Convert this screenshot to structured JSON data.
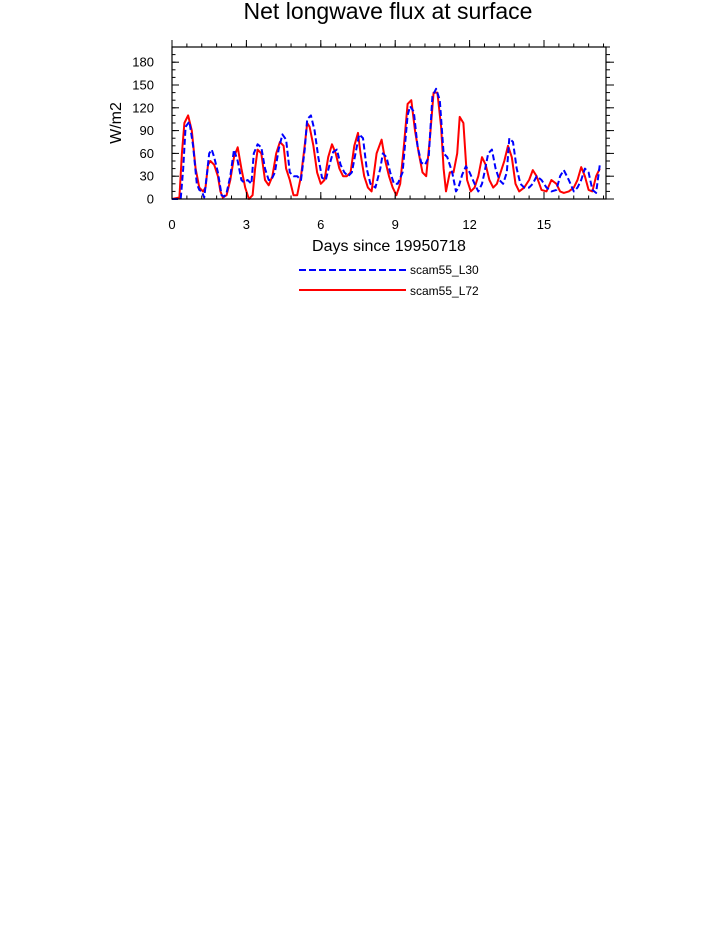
{
  "chart_data": {
    "type": "line",
    "title": "Net longwave flux at surface",
    "xlabel": "Days since 19950718",
    "ylabel": "W/m2",
    "xlim": [
      0,
      17.5
    ],
    "ylim": [
      0,
      200
    ],
    "xticks": [
      0,
      3,
      6,
      9,
      12,
      15
    ],
    "yticks": [
      0,
      30,
      60,
      90,
      120,
      150,
      180
    ],
    "grid": false,
    "legend_position": "bottom-center",
    "series": [
      {
        "name": "scam55_L30",
        "color": "#0000ff",
        "style": "dashed",
        "x": [
          0.0,
          0.35,
          0.45,
          0.55,
          0.7,
          0.85,
          1.0,
          1.1,
          1.2,
          1.3,
          1.4,
          1.5,
          1.6,
          1.7,
          1.85,
          2.0,
          2.1,
          2.2,
          2.35,
          2.5,
          2.65,
          2.8,
          2.9,
          3.05,
          3.2,
          3.3,
          3.45,
          3.6,
          3.75,
          3.9,
          4.0,
          4.15,
          4.3,
          4.45,
          4.6,
          4.75,
          4.9,
          5.05,
          5.2,
          5.35,
          5.45,
          5.6,
          5.75,
          5.9,
          6.05,
          6.2,
          6.35,
          6.5,
          6.65,
          6.8,
          6.95,
          7.1,
          7.25,
          7.4,
          7.55,
          7.7,
          7.85,
          8.0,
          8.2,
          8.4,
          8.5,
          8.65,
          8.8,
          8.95,
          9.1,
          9.3,
          9.5,
          9.6,
          9.75,
          9.9,
          10.05,
          10.2,
          10.35,
          10.5,
          10.65,
          10.8,
          10.95,
          11.1,
          11.3,
          11.45,
          11.55,
          11.7,
          11.85,
          12.0,
          12.2,
          12.35,
          12.5,
          12.6,
          12.75,
          12.9,
          13.05,
          13.2,
          13.35,
          13.5,
          13.6,
          13.75,
          13.9,
          14.05,
          14.2,
          14.4,
          14.55,
          14.7,
          14.9,
          15.1,
          15.3,
          15.5,
          15.65,
          15.8,
          16.0,
          16.2,
          16.35,
          16.5,
          16.65,
          16.8,
          16.95,
          17.1,
          17.25
        ],
        "values": [
          0,
          0,
          40,
          95,
          102,
          70,
          20,
          12,
          10,
          2,
          30,
          60,
          65,
          55,
          35,
          5,
          3,
          8,
          30,
          65,
          50,
          25,
          22,
          25,
          20,
          60,
          72,
          68,
          40,
          25,
          25,
          35,
          65,
          85,
          78,
          35,
          30,
          30,
          25,
          65,
          105,
          110,
          90,
          55,
          28,
          25,
          45,
          62,
          65,
          45,
          35,
          30,
          35,
          60,
          85,
          80,
          40,
          20,
          15,
          40,
          60,
          55,
          35,
          20,
          20,
          35,
          110,
          122,
          115,
          70,
          48,
          45,
          55,
          135,
          145,
          130,
          60,
          55,
          35,
          10,
          15,
          32,
          43,
          35,
          20,
          10,
          20,
          35,
          60,
          65,
          40,
          25,
          20,
          35,
          80,
          75,
          40,
          20,
          15,
          15,
          20,
          30,
          25,
          15,
          10,
          12,
          30,
          38,
          25,
          10,
          15,
          25,
          40,
          35,
          12,
          8,
          45
        ]
      },
      {
        "name": "scam55_L72",
        "color": "#ff0000",
        "style": "solid",
        "x": [
          0.0,
          0.3,
          0.4,
          0.5,
          0.65,
          0.8,
          0.95,
          1.1,
          1.25,
          1.35,
          1.45,
          1.55,
          1.7,
          1.85,
          1.95,
          2.05,
          2.2,
          2.35,
          2.5,
          2.65,
          2.8,
          2.95,
          3.1,
          3.25,
          3.35,
          3.45,
          3.6,
          3.75,
          3.9,
          4.05,
          4.2,
          4.35,
          4.5,
          4.6,
          4.75,
          4.9,
          5.05,
          5.2,
          5.35,
          5.45,
          5.55,
          5.7,
          5.85,
          6.0,
          6.15,
          6.3,
          6.45,
          6.6,
          6.75,
          6.9,
          7.05,
          7.2,
          7.35,
          7.5,
          7.6,
          7.75,
          7.9,
          8.05,
          8.25,
          8.45,
          8.6,
          8.75,
          8.9,
          9.05,
          9.2,
          9.35,
          9.5,
          9.65,
          9.8,
          9.95,
          10.1,
          10.25,
          10.4,
          10.55,
          10.7,
          10.85,
          10.95,
          11.05,
          11.2,
          11.35,
          11.5,
          11.6,
          11.75,
          11.9,
          12.05,
          12.2,
          12.35,
          12.5,
          12.65,
          12.8,
          12.95,
          13.1,
          13.25,
          13.4,
          13.55,
          13.7,
          13.85,
          14.0,
          14.2,
          14.4,
          14.55,
          14.7,
          14.9,
          15.1,
          15.3,
          15.5,
          15.65,
          15.8,
          16.0,
          16.2,
          16.35,
          16.5,
          16.65,
          16.8,
          16.95,
          17.1,
          17.25
        ],
        "values": [
          0,
          2,
          60,
          100,
          110,
          90,
          40,
          15,
          10,
          15,
          45,
          50,
          45,
          30,
          10,
          2,
          5,
          25,
          55,
          68,
          40,
          15,
          0,
          5,
          40,
          65,
          60,
          25,
          18,
          30,
          60,
          75,
          70,
          40,
          25,
          5,
          5,
          30,
          70,
          100,
          95,
          70,
          35,
          20,
          25,
          55,
          72,
          60,
          40,
          30,
          30,
          35,
          70,
          87,
          60,
          30,
          15,
          10,
          60,
          78,
          50,
          30,
          15,
          5,
          20,
          70,
          125,
          130,
          90,
          60,
          35,
          30,
          80,
          140,
          140,
          95,
          40,
          10,
          35,
          35,
          60,
          108,
          100,
          25,
          10,
          15,
          30,
          55,
          45,
          25,
          15,
          20,
          35,
          50,
          70,
          55,
          20,
          10,
          15,
          25,
          38,
          30,
          12,
          10,
          25,
          20,
          10,
          8,
          10,
          15,
          25,
          42,
          30,
          12,
          10,
          30,
          40
        ]
      }
    ]
  }
}
